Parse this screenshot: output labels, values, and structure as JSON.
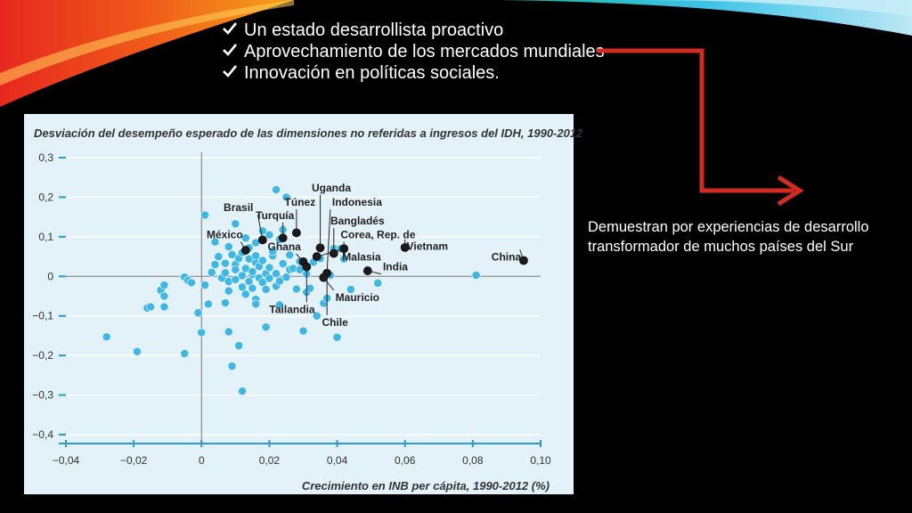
{
  "slide": {
    "bullets": [
      "Un estado desarrollista proactivo",
      "Aprovechamiento de los mercados mundiales",
      "Innovación en políticas sociales."
    ],
    "check_icon": "checkmark-icon",
    "side_text": "Demuestran por experiencias de desarrollo transformador de muchos países del Sur",
    "colors": {
      "background": "#000000",
      "text": "#ffffff",
      "arrow": "#d32a22",
      "panel": "#e3f1f8",
      "point_other": "#3db8e6",
      "point_highlight": "#1a1a1a"
    }
  },
  "chart_data": {
    "type": "scatter",
    "title": "Desviación del desempeño esperado de las dimensiones no referidas a ingresos del IDH, 1990-2012",
    "xlabel": "Crecimiento en INB per cápita, 1990-2012 (%)",
    "ylabel": "",
    "xlim": [
      -0.04,
      0.1
    ],
    "ylim": [
      -0.4,
      0.3
    ],
    "xticks": [
      -0.04,
      -0.02,
      0,
      0.02,
      0.04,
      0.06,
      0.08,
      0.1
    ],
    "xtick_labels": [
      "−0,04",
      "−0,02",
      "0",
      "0,02",
      "0,04",
      "0,06",
      "0,08",
      "0,10"
    ],
    "yticks": [
      0.3,
      0.2,
      0.1,
      0,
      -0.1,
      -0.2,
      -0.3,
      -0.4
    ],
    "ytick_labels": [
      "0,3",
      "0,2",
      "0,1",
      "0",
      "−0,1",
      "−0,2",
      "−0,3",
      "−0,4"
    ],
    "grid": true,
    "series": [
      {
        "points": [
          [
            -0.028,
            -0.153
          ],
          [
            -0.019,
            -0.19
          ],
          [
            -0.016,
            -0.08
          ],
          [
            -0.015,
            -0.077
          ],
          [
            -0.012,
            -0.035
          ],
          [
            -0.011,
            -0.022
          ],
          [
            -0.011,
            -0.05
          ],
          [
            -0.011,
            -0.077
          ],
          [
            -0.005,
            -0.195
          ],
          [
            -0.005,
            -0.002
          ],
          [
            -0.004,
            -0.01
          ],
          [
            -0.003,
            -0.016
          ],
          [
            -0.001,
            -0.092
          ],
          [
            0,
            -0.142
          ],
          [
            0.001,
            0.155
          ],
          [
            0.001,
            -0.022
          ],
          [
            0.002,
            -0.07
          ],
          [
            0.003,
            0.01
          ],
          [
            0.004,
            0.03
          ],
          [
            0.004,
            0.087
          ],
          [
            0.005,
            0.05
          ],
          [
            0.006,
            -0.004
          ],
          [
            0.007,
            -0.067
          ],
          [
            0.007,
            0.033
          ],
          [
            0.007,
            0.009
          ],
          [
            0.008,
            -0.013
          ],
          [
            0.008,
            -0.037
          ],
          [
            0.008,
            0.075
          ],
          [
            0.008,
            -0.14
          ],
          [
            0.009,
            0.055
          ],
          [
            0.009,
            -0.227
          ],
          [
            0.01,
            0.133
          ],
          [
            0.01,
            0.03
          ],
          [
            0.01,
            -0.008
          ],
          [
            0.01,
            0.017
          ],
          [
            0.011,
            -0.175
          ],
          [
            0.011,
            0.045
          ],
          [
            0.012,
            0.002
          ],
          [
            0.012,
            -0.027
          ],
          [
            0.012,
            0.06
          ],
          [
            0.012,
            -0.29
          ],
          [
            0.013,
            -0.045
          ],
          [
            0.013,
            0.097
          ],
          [
            0.013,
            0.02
          ],
          [
            0.014,
            -0.013
          ],
          [
            0.014,
            0.072
          ],
          [
            0.014,
            0.044
          ],
          [
            0.015,
            -0.03
          ],
          [
            0.015,
            0.005
          ],
          [
            0.015,
            0.012
          ],
          [
            0.016,
            0.035
          ],
          [
            0.016,
            0.052
          ],
          [
            0.016,
            -0.058
          ],
          [
            0.016,
            -0.07
          ],
          [
            0.016,
            0.085
          ],
          [
            0.017,
            -0.004
          ],
          [
            0.017,
            0.025
          ],
          [
            0.018,
            0.04
          ],
          [
            0.018,
            0.115
          ],
          [
            0.018,
            -0.015
          ],
          [
            0.019,
            0.007
          ],
          [
            0.019,
            -0.128
          ],
          [
            0.019,
            -0.033
          ],
          [
            0.02,
            0.105
          ],
          [
            0.02,
            0.022
          ],
          [
            0.02,
            -0.005
          ],
          [
            0.021,
            0.052
          ],
          [
            0.021,
            0.063
          ],
          [
            0.022,
            0.219
          ],
          [
            0.022,
            -0.025
          ],
          [
            0.022,
            0.007
          ],
          [
            0.023,
            0.093
          ],
          [
            0.023,
            -0.012
          ],
          [
            0.023,
            -0.072
          ],
          [
            0.024,
            0.118
          ],
          [
            0.024,
            0.032
          ],
          [
            0.025,
            0.2
          ],
          [
            0.025,
            -0.002
          ],
          [
            0.026,
            0.017
          ],
          [
            0.026,
            0.054
          ],
          [
            0.027,
            0.02
          ],
          [
            0.028,
            -0.032
          ],
          [
            0.029,
            0.017
          ],
          [
            0.029,
            0.038
          ],
          [
            0.03,
            -0.138
          ],
          [
            0.031,
            -0.04
          ],
          [
            0.031,
            0.006
          ],
          [
            0.032,
            -0.03
          ],
          [
            0.033,
            0.036
          ],
          [
            0.034,
            -0.1
          ],
          [
            0.035,
            0.045
          ],
          [
            0.036,
            -0.068
          ],
          [
            0.037,
            0.005
          ],
          [
            0.037,
            -0.055
          ],
          [
            0.038,
            0.003
          ],
          [
            0.039,
            0.07
          ],
          [
            0.04,
            -0.154
          ],
          [
            0.041,
            0.07
          ],
          [
            0.042,
            0.044
          ],
          [
            0.044,
            -0.033
          ],
          [
            0.052,
            -0.017
          ],
          [
            0.081,
            0.003
          ]
        ]
      },
      {
        "points": [
          [
            0.013,
            0.066
          ],
          [
            0.018,
            0.092
          ],
          [
            0.024,
            0.097
          ],
          [
            0.028,
            0.11
          ],
          [
            0.03,
            0.037
          ],
          [
            0.031,
            0.024
          ],
          [
            0.034,
            0.05
          ],
          [
            0.035,
            0.072
          ],
          [
            0.037,
            0.008
          ],
          [
            0.039,
            0.058
          ],
          [
            0.042,
            0.07
          ],
          [
            0.049,
            0.014
          ],
          [
            0.06,
            0.073
          ],
          [
            0.095,
            0.04
          ],
          [
            0.036,
            -0.003
          ]
        ]
      }
    ],
    "annotations": [
      {
        "text": "Uganda",
        "x": 0.0325,
        "y": 0.215,
        "px": 0.035,
        "py": 0.072
      },
      {
        "text": "Túnez",
        "x": 0.0245,
        "y": 0.178,
        "px": 0.028,
        "py": 0.11
      },
      {
        "text": "Indonesia",
        "x": 0.0385,
        "y": 0.178,
        "px": 0.037,
        "py": 0.008
      },
      {
        "text": "Brasil",
        "x": 0.0065,
        "y": 0.165,
        "px": 0.018,
        "py": 0.092
      },
      {
        "text": "Turquía",
        "x": 0.016,
        "y": 0.145,
        "px": 0.024,
        "py": 0.097
      },
      {
        "text": "Bangladés",
        "x": 0.038,
        "y": 0.131,
        "px": 0.039,
        "py": 0.058
      },
      {
        "text": "México",
        "x": 0.0015,
        "y": 0.096,
        "px": 0.013,
        "py": 0.066
      },
      {
        "text": "Corea, Rep. de",
        "x": 0.041,
        "y": 0.096,
        "px": 0.042,
        "py": 0.07
      },
      {
        "text": "Vietnam",
        "x": 0.0605,
        "y": 0.067,
        "px": 0.06,
        "py": 0.073
      },
      {
        "text": "Ghana",
        "x": 0.0195,
        "y": 0.066,
        "px": 0.03,
        "py": 0.037
      },
      {
        "text": "China",
        "x": 0.0855,
        "y": 0.04,
        "px": 0.095,
        "py": 0.04
      },
      {
        "text": "Malasia",
        "x": 0.0415,
        "y": 0.04,
        "px": 0.034,
        "py": 0.05
      },
      {
        "text": "India",
        "x": 0.0535,
        "y": 0.015,
        "px": 0.049,
        "py": 0.014
      },
      {
        "text": "Mauricio",
        "x": 0.0395,
        "y": -0.062,
        "px": 0.036,
        "py": -0.003
      },
      {
        "text": "Tailandia",
        "x": 0.02,
        "y": -0.093,
        "px": 0.031,
        "py": 0.024
      },
      {
        "text": "Chile",
        "x": 0.0355,
        "y": -0.125,
        "px": 0.037,
        "py": 0.005
      }
    ]
  }
}
